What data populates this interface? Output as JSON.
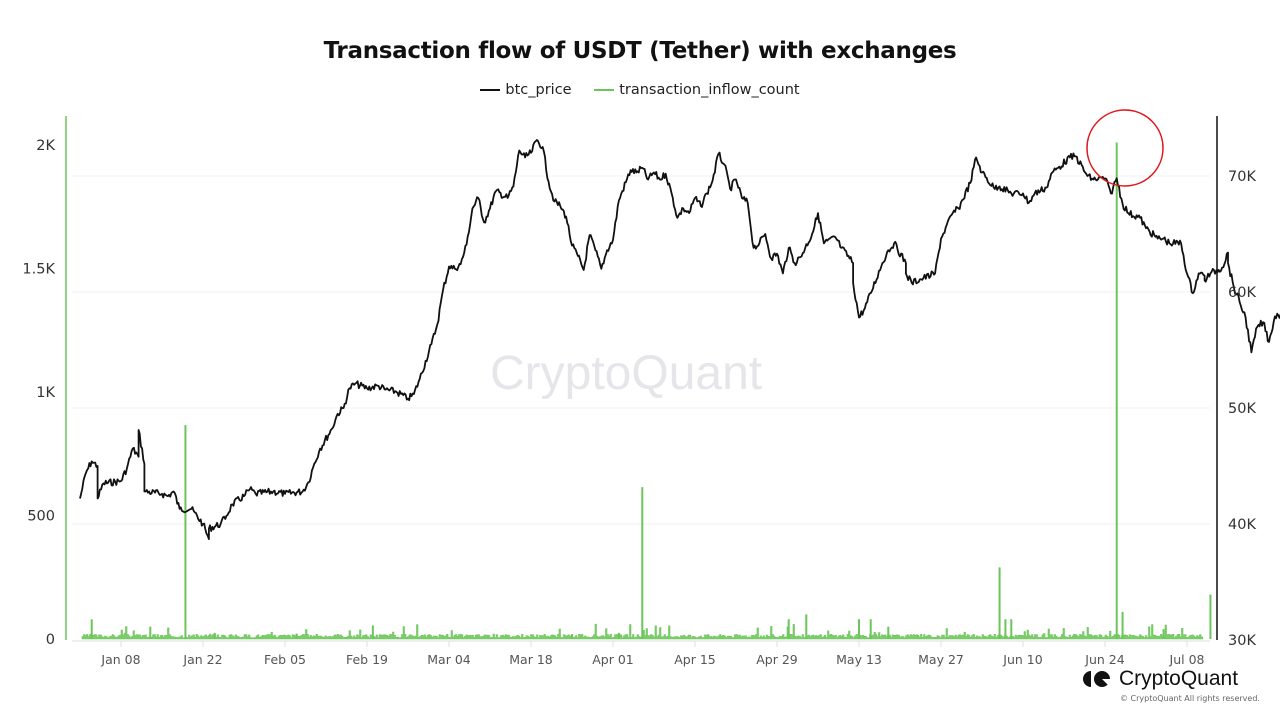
{
  "header": {
    "title": "Transaction flow of USDT (Tether) with exchanges"
  },
  "legend": [
    {
      "label": "btc_price",
      "color": "#111111"
    },
    {
      "label": "transaction_inflow_count",
      "color": "#6cc55a"
    }
  ],
  "watermark": "CryptoQuant",
  "footer": {
    "brand": "CryptoQuant",
    "copyright": "© CryptoQuant All rights reserved."
  },
  "annotation": {
    "type": "circle",
    "color": "#e0161c",
    "target": "transaction_inflow_count peak near Jun 26"
  },
  "chart_data": {
    "type": "line",
    "title": "Transaction flow of USDT (Tether) with exchanges",
    "xlabel": "",
    "ylabel_left": "transaction_inflow_count",
    "ylabel_right": "btc_price",
    "x_ticks": [
      "Jan 08",
      "Jan 22",
      "Feb 05",
      "Feb 19",
      "Mar 04",
      "Mar 18",
      "Apr 01",
      "Apr 15",
      "Apr 29",
      "May 13",
      "May 27",
      "Jun 10",
      "Jun 24",
      "Jul 08"
    ],
    "y_left_ticks": [
      "0",
      "500",
      "1K",
      "1.5K",
      "2K"
    ],
    "y_left_range": [
      0,
      2000
    ],
    "y_right_ticks": [
      "30K",
      "40K",
      "50K",
      "60K",
      "70K"
    ],
    "y_right_range": [
      30000,
      70000
    ],
    "grid": true,
    "legend_position": "top",
    "series": [
      {
        "name": "btc_price",
        "axis": "right",
        "color": "#111111",
        "points": [
          [
            "Jan 01",
            42200
          ],
          [
            "Jan 02",
            44400
          ],
          [
            "Jan 03",
            45400
          ],
          [
            "Jan 04",
            45000
          ],
          [
            "Jan 04",
            42200
          ],
          [
            "Jan 05",
            43500
          ],
          [
            "Jan 08",
            43700
          ],
          [
            "Jan 09",
            44800
          ],
          [
            "Jan 10",
            46500
          ],
          [
            "Jan 11",
            45800
          ],
          [
            "Jan 11",
            48100
          ],
          [
            "Jan 12",
            45200
          ],
          [
            "Jan 12",
            42800
          ],
          [
            "Jan 15",
            42600
          ],
          [
            "Jan 16",
            42400
          ],
          [
            "Jan 17",
            42800
          ],
          [
            "Jan 18",
            41300
          ],
          [
            "Jan 20",
            41300
          ],
          [
            "Jan 22",
            40000
          ],
          [
            "Jan 23",
            38700
          ],
          [
            "Jan 23",
            39600
          ],
          [
            "Jan 25",
            40000
          ],
          [
            "Jan 26",
            40700
          ],
          [
            "Jan 27",
            41700
          ],
          [
            "Jan 29",
            42400
          ],
          [
            "Jan 30",
            43000
          ],
          [
            "Jan 31",
            42600
          ],
          [
            "Feb 03",
            42800
          ],
          [
            "Feb 05",
            42600
          ],
          [
            "Feb 08",
            42800
          ],
          [
            "Feb 09",
            43600
          ],
          [
            "Feb 10",
            45200
          ],
          [
            "Feb 11",
            46500
          ],
          [
            "Feb 13",
            48200
          ],
          [
            "Feb 14",
            49500
          ],
          [
            "Feb 15",
            50000
          ],
          [
            "Feb 16",
            51700
          ],
          [
            "Feb 17",
            52100
          ],
          [
            "Feb 19",
            51700
          ],
          [
            "Feb 21",
            51900
          ],
          [
            "Feb 22",
            51600
          ],
          [
            "Feb 24",
            51400
          ],
          [
            "Feb 26",
            50800
          ],
          [
            "Feb 27",
            51200
          ],
          [
            "Feb 28",
            52500
          ],
          [
            "Mar 01",
            55500
          ],
          [
            "Mar 02",
            57200
          ],
          [
            "Mar 03",
            60200
          ],
          [
            "Mar 04",
            62200
          ],
          [
            "Mar 05",
            62000
          ],
          [
            "Mar 06",
            62400
          ],
          [
            "Mar 07",
            64100
          ],
          [
            "Mar 08",
            67200
          ],
          [
            "Mar 09",
            68100
          ],
          [
            "Mar 10",
            66000
          ],
          [
            "Mar 11",
            67200
          ],
          [
            "Mar 12",
            68700
          ],
          [
            "Mar 14",
            68100
          ],
          [
            "Mar 15",
            69100
          ],
          [
            "Mar 16",
            72200
          ],
          [
            "Mar 17",
            71600
          ],
          [
            "Mar 18",
            72000
          ],
          [
            "Mar 19",
            73100
          ],
          [
            "Mar 20",
            72500
          ],
          [
            "Mar 21",
            69500
          ],
          [
            "Mar 22",
            67800
          ],
          [
            "Mar 23",
            67400
          ],
          [
            "Mar 24",
            66500
          ],
          [
            "Mar 25",
            64000
          ],
          [
            "Mar 26",
            63100
          ],
          [
            "Mar 27",
            61900
          ],
          [
            "Mar 28",
            64900
          ],
          [
            "Mar 29",
            63600
          ],
          [
            "Mar 30",
            62000
          ],
          [
            "Mar 31",
            63600
          ],
          [
            "Apr 01",
            64500
          ],
          [
            "Apr 02",
            67900
          ],
          [
            "Apr 04",
            70500
          ],
          [
            "Apr 05",
            70300
          ],
          [
            "Apr 06",
            70700
          ],
          [
            "Apr 07",
            69700
          ],
          [
            "Apr 08",
            70300
          ],
          [
            "Apr 09",
            69700
          ],
          [
            "Apr 10",
            70200
          ],
          [
            "Apr 11",
            68500
          ],
          [
            "Apr 12",
            66400
          ],
          [
            "Apr 13",
            67200
          ],
          [
            "Apr 14",
            66800
          ],
          [
            "Apr 15",
            68100
          ],
          [
            "Apr 16",
            67400
          ],
          [
            "Apr 17",
            68500
          ],
          [
            "Apr 18",
            69600
          ],
          [
            "Apr 19",
            71900
          ],
          [
            "Apr 20",
            71000
          ],
          [
            "Apr 21",
            68900
          ],
          [
            "Apr 22",
            69700
          ],
          [
            "Apr 23",
            68100
          ],
          [
            "Apr 24",
            67700
          ],
          [
            "Apr 25",
            63800
          ],
          [
            "Apr 26",
            64200
          ],
          [
            "Apr 27",
            65000
          ],
          [
            "Apr 28",
            62900
          ],
          [
            "Apr 29",
            63300
          ],
          [
            "Apr 30",
            61600
          ],
          [
            "May 01",
            63800
          ],
          [
            "May 02",
            62500
          ],
          [
            "May 03",
            63000
          ],
          [
            "May 05",
            65000
          ],
          [
            "May 06",
            66800
          ],
          [
            "May 07",
            64200
          ],
          [
            "May 09",
            64700
          ],
          [
            "May 10",
            63800
          ],
          [
            "May 12",
            62500
          ],
          [
            "May 12",
            60800
          ],
          [
            "May 13",
            57800
          ],
          [
            "May 14",
            58600
          ],
          [
            "May 15",
            59900
          ],
          [
            "May 17",
            62500
          ],
          [
            "May 18",
            63600
          ],
          [
            "May 19",
            64200
          ],
          [
            "May 21",
            62500
          ],
          [
            "May 21",
            61600
          ],
          [
            "May 22",
            60800
          ],
          [
            "May 24",
            61200
          ],
          [
            "May 26",
            61600
          ],
          [
            "May 27",
            64600
          ],
          [
            "May 29",
            66800
          ],
          [
            "May 30",
            67200
          ],
          [
            "Jun 01",
            69400
          ],
          [
            "Jun 02",
            71600
          ],
          [
            "Jun 03",
            70300
          ],
          [
            "Jun 05",
            69000
          ],
          [
            "Jun 06",
            69100
          ],
          [
            "Jun 08",
            68500
          ],
          [
            "Jun 10",
            68500
          ],
          [
            "Jun 11",
            67700
          ],
          [
            "Jun 12",
            68500
          ],
          [
            "Jun 14",
            69000
          ],
          [
            "Jun 15",
            70300
          ],
          [
            "Jun 16",
            70700
          ],
          [
            "Jun 18",
            71600
          ],
          [
            "Jun 19",
            71700
          ],
          [
            "Jun 21",
            70000
          ],
          [
            "Jun 22",
            69700
          ],
          [
            "Jun 24",
            69800
          ],
          [
            "Jun 25",
            68500
          ],
          [
            "Jun 26",
            69800
          ],
          [
            "Jun 27",
            67600
          ],
          [
            "Jun 28",
            66800
          ],
          [
            "Jun 30",
            66400
          ],
          [
            "Jul 01",
            65500
          ],
          [
            "Jul 03",
            64600
          ],
          [
            "Jul 04",
            64600
          ],
          [
            "Jul 05",
            64200
          ],
          [
            "Jul 07",
            64200
          ],
          [
            "Jul 08",
            61600
          ],
          [
            "Jul 09",
            59900
          ],
          [
            "Jul 10",
            61600
          ],
          [
            "Jul 11",
            61400
          ],
          [
            "Jul 11",
            61000
          ],
          [
            "Jul 12",
            61600
          ],
          [
            "Jul 14",
            62100
          ],
          [
            "Jul 15",
            63400
          ],
          [
            "Jul 15",
            62500
          ],
          [
            "Jul 16",
            60400
          ],
          [
            "Jul 17",
            59100
          ],
          [
            "Jul 18",
            57800
          ],
          [
            "Jul 19",
            54800
          ],
          [
            "Jul 20",
            57000
          ],
          [
            "Jul 21",
            57400
          ],
          [
            "Jul 22",
            55700
          ],
          [
            "Jul 23",
            57900
          ],
          [
            "Jul 24",
            58100
          ],
          [
            "Jul 25",
            58400
          ]
        ]
      },
      {
        "name": "transaction_inflow_count",
        "axis": "left",
        "color": "#6cc55a",
        "baseline": 12,
        "spikes": [
          [
            "Jan 03",
            80
          ],
          [
            "Jan 13",
            50
          ],
          [
            "Jan 19",
            866
          ],
          [
            "Jan 24",
            25
          ],
          [
            "Feb 07",
            22
          ],
          [
            "Feb 20",
            55
          ],
          [
            "Mar 25",
            20
          ],
          [
            "Apr 06",
            615
          ],
          [
            "Apr 02",
            25
          ],
          [
            "May 01",
            80
          ],
          [
            "May 04",
            100
          ],
          [
            "May 13",
            80
          ],
          [
            "May 15",
            80
          ],
          [
            "May 18",
            50
          ],
          [
            "Jun 06",
            290
          ],
          [
            "Jun 07",
            80
          ],
          [
            "Jun 08",
            80
          ],
          [
            "Jun 26",
            2010
          ],
          [
            "Jun 27",
            110
          ],
          [
            "Jul 04",
            40
          ],
          [
            "Jul 12",
            180
          ]
        ]
      }
    ]
  }
}
